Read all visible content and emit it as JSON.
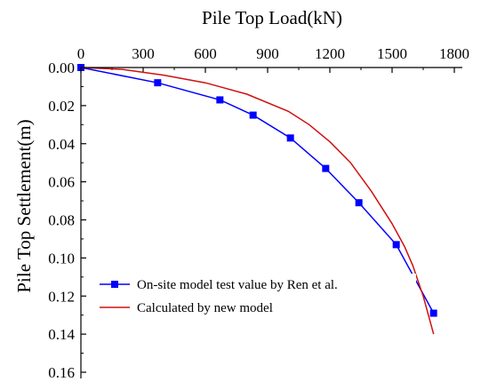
{
  "chart_data": {
    "type": "line",
    "xlabel": "Pile Top Load(kN)",
    "ylabel": "Pile Top Settlement(m)",
    "xlim": [
      0,
      1800
    ],
    "ylim": [
      0,
      0.16
    ],
    "y_inverted": true,
    "x_axis_position": "top",
    "grid": false,
    "legend_position": "bottom-left",
    "x_ticks": [
      0,
      300,
      600,
      900,
      1200,
      1500,
      1800
    ],
    "x_tick_labels": [
      "0",
      "300",
      "600",
      "900",
      "1200",
      "1500",
      "1800"
    ],
    "y_ticks": [
      0,
      0.02,
      0.04,
      0.06,
      0.08,
      0.1,
      0.12,
      0.14,
      0.16
    ],
    "y_tick_labels": [
      "0.00",
      "0.02",
      "0.04",
      "0.06",
      "0.08",
      "0.10",
      "0.12",
      "0.14",
      "0.16"
    ],
    "series": [
      {
        "name": "On-site model test value by Ren et al.",
        "color": "#0000ff",
        "marker": "square",
        "x": [
          0,
          370,
          670,
          830,
          1010,
          1180,
          1340,
          1520,
          1700
        ],
        "y": [
          0,
          0.008,
          0.017,
          0.025,
          0.037,
          0.053,
          0.071,
          0.093,
          0.129
        ]
      },
      {
        "name": "Calculated by new model",
        "color": "#d01010",
        "marker": "none",
        "x": [
          0,
          200,
          400,
          600,
          800,
          1000,
          1100,
          1200,
          1300,
          1400,
          1500,
          1560,
          1600,
          1650,
          1700
        ],
        "y": [
          0,
          0.001,
          0.004,
          0.008,
          0.014,
          0.023,
          0.03,
          0.039,
          0.05,
          0.065,
          0.082,
          0.094,
          0.104,
          0.12,
          0.14
        ]
      }
    ]
  }
}
